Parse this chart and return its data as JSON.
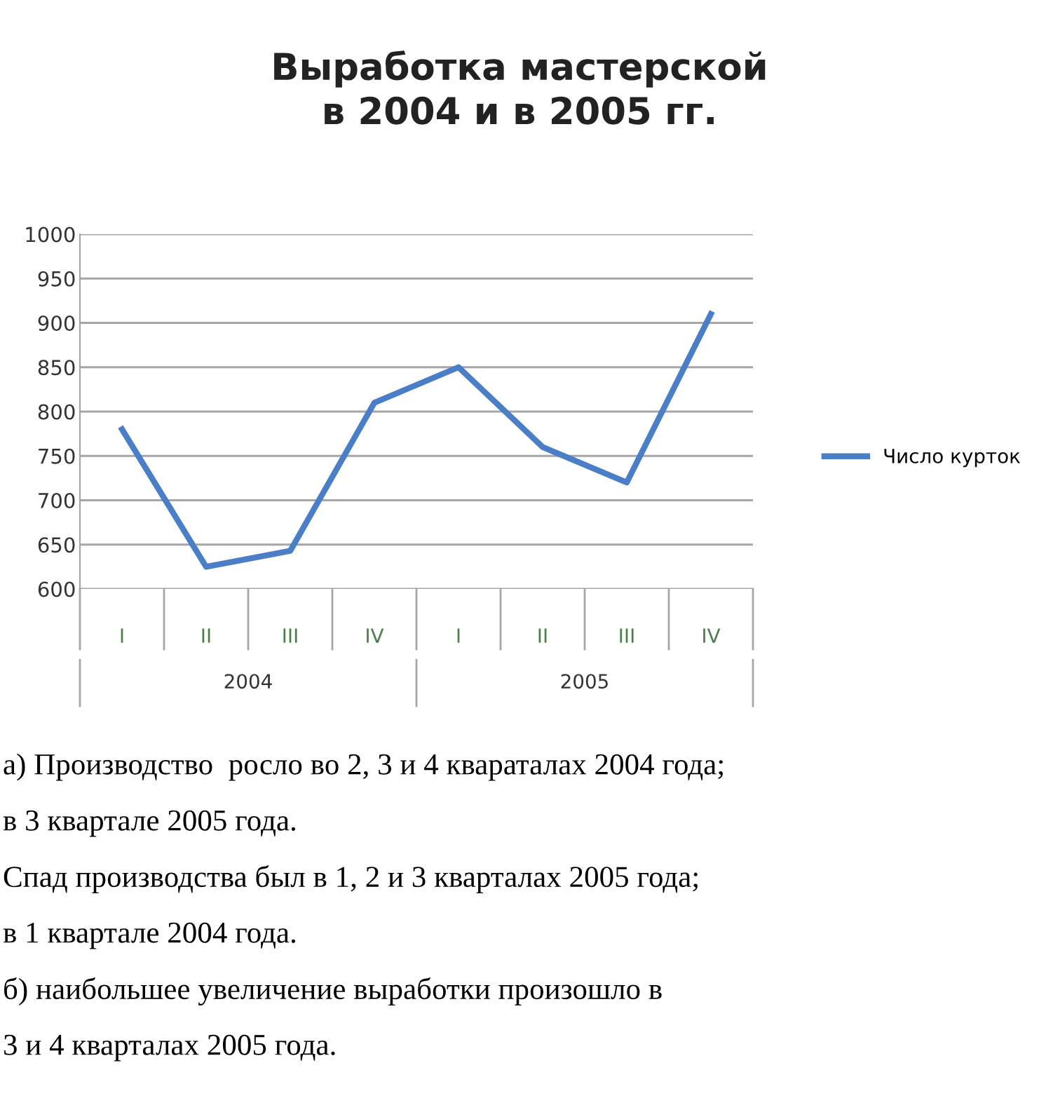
{
  "chart_data": {
    "type": "line",
    "title": "Выработка мастерской\nв 2004 и в 2005 гг.",
    "categories": [
      "I",
      "II",
      "III",
      "IV",
      "I",
      "II",
      "III",
      "IV"
    ],
    "series": [
      {
        "name": "Число курток",
        "color": "#4a7fc8",
        "values": [
          780,
          625,
          643,
          810,
          850,
          760,
          720,
          910
        ]
      }
    ],
    "ylim": [
      600,
      1000
    ],
    "yticks": [
      600,
      650,
      700,
      750,
      800,
      850,
      900,
      950,
      1000
    ],
    "grid": "y",
    "legend": "right",
    "marker": "none",
    "line_style": "solid",
    "annotations": [
      "2004",
      "2005",
      "а) Производство  росло во 2, 3 и 4 квараталах 2004 года;",
      "в 3 квартале 2005 года.",
      "Спад производства был в 1, 2 и 3 кварталах 2005 года;",
      "в 1 квартале 2004 года.",
      "б) наибольшее увеличение выработки произошло в",
      "3 и 4 кварталах 2005 года."
    ]
  }
}
